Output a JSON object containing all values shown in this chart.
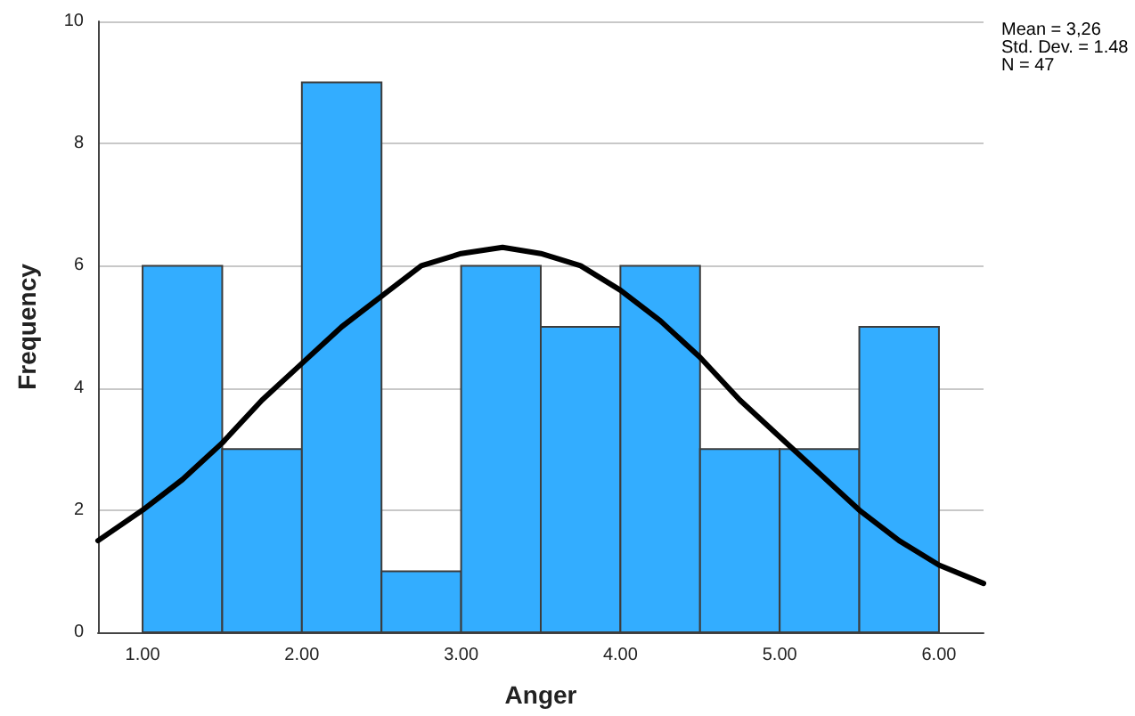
{
  "chart_data": {
    "type": "histogram",
    "xlabel": "Anger",
    "ylabel": "Frequency",
    "annotations": [
      "Mean = 3,26",
      "Std. Dev. = 1.48",
      "N = 47"
    ],
    "bins": [
      1.0,
      1.5,
      2.0,
      2.5,
      3.0,
      3.5,
      4.0,
      4.5,
      5.0,
      5.5,
      6.0
    ],
    "values": [
      6,
      3,
      9,
      1,
      6,
      5,
      6,
      3,
      3,
      5
    ],
    "color": "#33adff",
    "series": [
      {
        "type": "line",
        "color": "#000000",
        "x": [
          0.72,
          1.0,
          1.25,
          1.5,
          1.75,
          2.0,
          2.25,
          2.5,
          2.75,
          3.0,
          3.26,
          3.5,
          3.75,
          4.0,
          4.25,
          4.5,
          4.75,
          5.0,
          5.25,
          5.5,
          5.75,
          6.0,
          6.28
        ],
        "values": [
          1.5,
          2.0,
          2.5,
          3.1,
          3.8,
          4.4,
          5.0,
          5.5,
          6.0,
          6.2,
          6.3,
          6.2,
          6.0,
          5.6,
          5.1,
          4.5,
          3.8,
          3.2,
          2.6,
          2.0,
          1.5,
          1.1,
          0.8
        ]
      }
    ],
    "xlim": [
      0.72,
      6.28
    ],
    "xticks": [
      {
        "value": 1,
        "label": "1.00"
      },
      {
        "value": 2,
        "label": "2.00"
      },
      {
        "value": 3,
        "label": "3.00"
      },
      {
        "value": 4,
        "label": "4.00"
      },
      {
        "value": 5,
        "label": "5.00"
      },
      {
        "value": 6,
        "label": "6.00"
      }
    ],
    "ylim": [
      0,
      10
    ],
    "yticks": [
      0,
      2,
      4,
      6,
      8,
      10
    ],
    "grid": "y",
    "marker": "none",
    "line_style": "solid"
  }
}
